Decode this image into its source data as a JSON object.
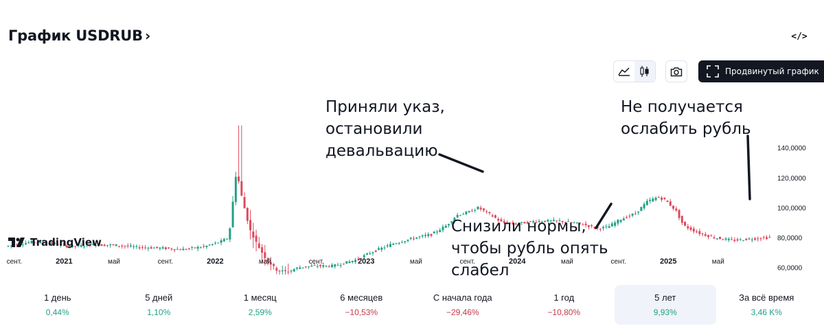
{
  "header": {
    "title": "График USDRUB",
    "chevron": "›",
    "embed_icon": "code-embed-icon",
    "embed_glyph": "</>"
  },
  "toolbar": {
    "chart_type_line_icon": "area-chart-icon",
    "chart_type_candles_icon": "candlestick-icon",
    "snapshot_icon": "camera-icon",
    "advanced_label": "Продвинутый график",
    "advanced_icon": "fullscreen-icon"
  },
  "annotations": [
    {
      "id": "decree",
      "lines": [
        "Приняли указ,",
        "остановили",
        "девальвацию"
      ]
    },
    {
      "id": "weak",
      "lines": [
        "Не получается",
        "ослабить рубль"
      ]
    },
    {
      "id": "norms",
      "lines": [
        "Снизили нормы,",
        "чтобы рубль опять",
        "слабел"
      ]
    }
  ],
  "logo": {
    "text": "TradingView",
    "icon": "tradingview-logo-icon"
  },
  "periods": [
    {
      "label": "1 день",
      "value": "0,44%",
      "trend": "pos"
    },
    {
      "label": "5 дней",
      "value": "1,10%",
      "trend": "pos"
    },
    {
      "label": "1 месяц",
      "value": "2,59%",
      "trend": "pos"
    },
    {
      "label": "6 месяцев",
      "value": "−10,53%",
      "trend": "neg"
    },
    {
      "label": "С начала года",
      "value": "−29,46%",
      "trend": "neg"
    },
    {
      "label": "1 год",
      "value": "−10,80%",
      "trend": "neg"
    },
    {
      "label": "5 лет",
      "value": "9,93%",
      "trend": "pos",
      "active": true
    },
    {
      "label": "За всё время",
      "value": "3,46 K%",
      "trend": "pos"
    }
  ],
  "colors": {
    "up": "#22a085",
    "down": "#e0495c",
    "text": "#131722",
    "muted": "#5d606b"
  },
  "chart_data": {
    "type": "candlestick",
    "symbol": "USDRUB",
    "ylim": [
      55,
      160
    ],
    "y_ticks": [
      {
        "v": 60,
        "label": "60,0000"
      },
      {
        "v": 80,
        "label": "80,0000"
      },
      {
        "v": 100,
        "label": "100,0000"
      },
      {
        "v": 120,
        "label": "120,0000"
      },
      {
        "v": 140,
        "label": "140,0000"
      }
    ],
    "x_range": [
      2020.63,
      2025.69
    ],
    "x_ticks": [
      {
        "t": 2020.67,
        "label": "сент.",
        "bold": false
      },
      {
        "t": 2021.0,
        "label": "2021",
        "bold": true
      },
      {
        "t": 2021.33,
        "label": "май",
        "bold": false
      },
      {
        "t": 2021.67,
        "label": "сент.",
        "bold": false
      },
      {
        "t": 2022.0,
        "label": "2022",
        "bold": true
      },
      {
        "t": 2022.33,
        "label": "май",
        "bold": false
      },
      {
        "t": 2022.67,
        "label": "сент.",
        "bold": false
      },
      {
        "t": 2023.0,
        "label": "2023",
        "bold": true
      },
      {
        "t": 2023.33,
        "label": "май",
        "bold": false
      },
      {
        "t": 2023.67,
        "label": "сент.",
        "bold": false
      },
      {
        "t": 2024.0,
        "label": "2024",
        "bold": true
      },
      {
        "t": 2024.33,
        "label": "май",
        "bold": false
      },
      {
        "t": 2024.67,
        "label": "сент.",
        "bold": false
      },
      {
        "t": 2025.0,
        "label": "2025",
        "bold": true
      },
      {
        "t": 2025.33,
        "label": "май",
        "bold": false
      }
    ],
    "path": [
      [
        2020.63,
        74
      ],
      [
        2020.8,
        77
      ],
      [
        2020.95,
        76
      ],
      [
        2021.05,
        74
      ],
      [
        2021.2,
        75
      ],
      [
        2021.35,
        75
      ],
      [
        2021.5,
        73.5
      ],
      [
        2021.65,
        73
      ],
      [
        2021.8,
        72
      ],
      [
        2021.95,
        74
      ],
      [
        2022.05,
        77
      ],
      [
        2022.11,
        80
      ],
      [
        2022.16,
        125
      ],
      [
        2022.2,
        105
      ],
      [
        2022.25,
        85
      ],
      [
        2022.3,
        75
      ],
      [
        2022.36,
        65
      ],
      [
        2022.43,
        58
      ],
      [
        2022.5,
        57
      ],
      [
        2022.57,
        60
      ],
      [
        2022.67,
        61
      ],
      [
        2022.8,
        61
      ],
      [
        2022.95,
        65
      ],
      [
        2023.05,
        70
      ],
      [
        2023.2,
        76
      ],
      [
        2023.35,
        80
      ],
      [
        2023.45,
        82
      ],
      [
        2023.55,
        88
      ],
      [
        2023.62,
        95
      ],
      [
        2023.7,
        97
      ],
      [
        2023.76,
        100
      ],
      [
        2023.83,
        96
      ],
      [
        2023.92,
        90
      ],
      [
        2024.0,
        89
      ],
      [
        2024.15,
        91
      ],
      [
        2024.3,
        91
      ],
      [
        2024.45,
        89
      ],
      [
        2024.55,
        86
      ],
      [
        2024.62,
        87
      ],
      [
        2024.7,
        92
      ],
      [
        2024.8,
        96
      ],
      [
        2024.88,
        104
      ],
      [
        2024.95,
        107
      ],
      [
        2025.0,
        105
      ],
      [
        2025.07,
        98
      ],
      [
        2025.12,
        88
      ],
      [
        2025.22,
        83
      ],
      [
        2025.32,
        80
      ],
      [
        2025.45,
        78
      ],
      [
        2025.55,
        79
      ],
      [
        2025.69,
        80
      ]
    ],
    "spikes": [
      {
        "t": 2022.167,
        "high": 155,
        "low": 122
      },
      {
        "t": 2022.18,
        "high": 150,
        "low": 110
      }
    ]
  }
}
